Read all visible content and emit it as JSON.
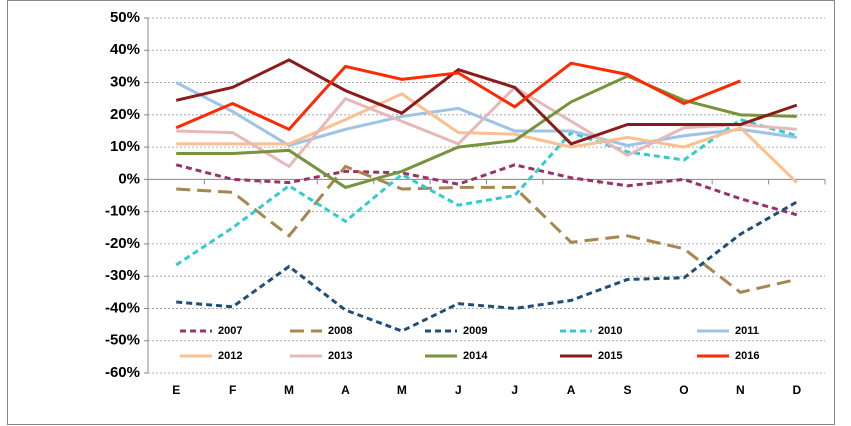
{
  "chart_data": {
    "type": "line",
    "categories": [
      "E",
      "F",
      "M",
      "A",
      "M",
      "J",
      "J",
      "A",
      "S",
      "O",
      "N",
      "D"
    ],
    "ylim": [
      -60,
      50
    ],
    "yticks": [
      {
        "value": -60,
        "label": "-60%"
      },
      {
        "value": -50,
        "label": "-50%"
      },
      {
        "value": -40,
        "label": "-40%"
      },
      {
        "value": -30,
        "label": "-30%"
      },
      {
        "value": -20,
        "label": "-20%"
      },
      {
        "value": -10,
        "label": "-10%"
      },
      {
        "value": 0,
        "label": "0%"
      },
      {
        "value": 10,
        "label": "10%"
      },
      {
        "value": 20,
        "label": "20%"
      },
      {
        "value": 30,
        "label": "30%"
      },
      {
        "value": 40,
        "label": "40%"
      },
      {
        "value": 50,
        "label": "50%"
      }
    ],
    "grid": true,
    "series": [
      {
        "name": "2007",
        "color": "#993366",
        "style": "dash",
        "values": [
          4.5,
          0,
          -1,
          2.5,
          2,
          -1.5,
          4.5,
          0.5,
          -2,
          0,
          -6,
          -11
        ]
      },
      {
        "name": "2008",
        "color": "#a5874f",
        "style": "longdash",
        "values": [
          -3,
          -4,
          -17.5,
          4,
          -3,
          -2.5,
          -2.5,
          -19.5,
          -17.5,
          -21.5,
          -35,
          -31
        ]
      },
      {
        "name": "2009",
        "color": "#1f4e79",
        "style": "dash",
        "values": [
          -38,
          -39.5,
          -27,
          -40.5,
          -47,
          -38.5,
          -40,
          -37.5,
          -31,
          -30.5,
          -17,
          -7
        ]
      },
      {
        "name": "2010",
        "color": "#33cccc",
        "style": "dash",
        "values": [
          -26.5,
          -15,
          -2,
          -13,
          1.5,
          -8,
          -5,
          14.5,
          8.5,
          6,
          18.5,
          13.5
        ]
      },
      {
        "name": "2011",
        "color": "#9dc3e6",
        "style": "solid",
        "values": [
          30,
          21,
          10.5,
          15.5,
          19.5,
          22,
          15,
          15,
          10.5,
          13.5,
          15.5,
          13
        ]
      },
      {
        "name": "2012",
        "color": "#fac090",
        "style": "solid",
        "values": [
          11,
          11,
          11,
          18.5,
          26.5,
          14.5,
          14,
          10,
          13,
          10,
          16,
          -1
        ]
      },
      {
        "name": "2013",
        "color": "#e6b9b8",
        "style": "solid",
        "values": [
          15,
          14.5,
          4,
          25,
          18,
          11,
          28.5,
          18,
          7.5,
          16,
          17,
          15.5
        ]
      },
      {
        "name": "2014",
        "color": "#77933c",
        "style": "solid",
        "values": [
          8,
          8,
          9,
          -2.5,
          2.5,
          10,
          12,
          24,
          32,
          24.5,
          20,
          19.5
        ]
      },
      {
        "name": "2015",
        "color": "#8b1a1a",
        "style": "solid",
        "values": [
          24.5,
          28.5,
          37,
          27.5,
          20.5,
          34,
          28.5,
          11,
          17,
          17,
          17,
          23
        ]
      },
      {
        "name": "2016",
        "color": "#ff2a00",
        "style": "solid",
        "values": [
          16,
          23.5,
          15.5,
          35,
          31,
          33,
          22.5,
          36,
          32.5,
          23.5,
          30.5,
          null
        ]
      }
    ]
  }
}
